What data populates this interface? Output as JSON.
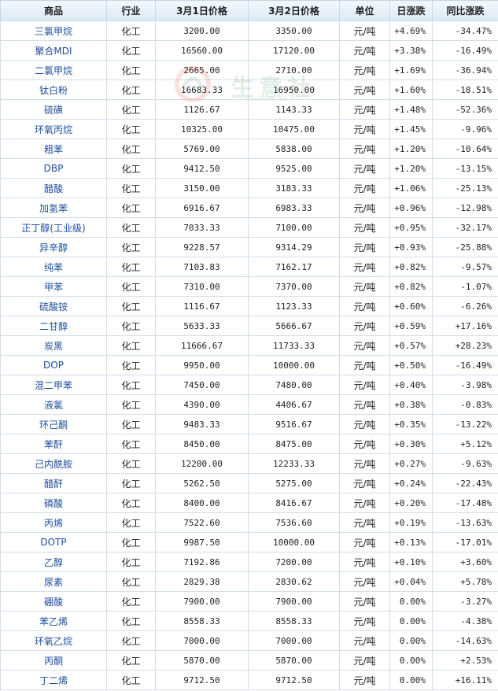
{
  "headers": {
    "product": "商品",
    "industry": "行业",
    "price_d1": "3月1日价格",
    "price_d2": "3月2日价格",
    "unit": "单位",
    "daily": "日涨跌",
    "yoy": "同比涨跌"
  },
  "watermark": {
    "text": "生意社",
    "sub": "100PPI.COM"
  },
  "colors": {
    "up": "#e0201b",
    "down": "#1a8d1a",
    "name": "#1f4e9c"
  },
  "rows": [
    {
      "name": "三氯甲烷",
      "industry": "化工",
      "p1": "3200.00",
      "p2": "3350.00",
      "unit": "元/吨",
      "daily": "+4.69%",
      "yoy": "-34.47%"
    },
    {
      "name": "聚合MDI",
      "industry": "化工",
      "p1": "16560.00",
      "p2": "17120.00",
      "unit": "元/吨",
      "daily": "+3.38%",
      "yoy": "-16.49%"
    },
    {
      "name": "二氯甲烷",
      "industry": "化工",
      "p1": "2665.00",
      "p2": "2710.00",
      "unit": "元/吨",
      "daily": "+1.69%",
      "yoy": "-36.94%"
    },
    {
      "name": "钛白粉",
      "industry": "化工",
      "p1": "16683.33",
      "p2": "16950.00",
      "unit": "元/吨",
      "daily": "+1.60%",
      "yoy": "-18.51%"
    },
    {
      "name": "硫磺",
      "industry": "化工",
      "p1": "1126.67",
      "p2": "1143.33",
      "unit": "元/吨",
      "daily": "+1.48%",
      "yoy": "-52.36%"
    },
    {
      "name": "环氧丙烷",
      "industry": "化工",
      "p1": "10325.00",
      "p2": "10475.00",
      "unit": "元/吨",
      "daily": "+1.45%",
      "yoy": "-9.96%"
    },
    {
      "name": "粗苯",
      "industry": "化工",
      "p1": "5769.00",
      "p2": "5838.00",
      "unit": "元/吨",
      "daily": "+1.20%",
      "yoy": "-10.64%"
    },
    {
      "name": "DBP",
      "industry": "化工",
      "p1": "9412.50",
      "p2": "9525.00",
      "unit": "元/吨",
      "daily": "+1.20%",
      "yoy": "-13.15%"
    },
    {
      "name": "醋酸",
      "industry": "化工",
      "p1": "3150.00",
      "p2": "3183.33",
      "unit": "元/吨",
      "daily": "+1.06%",
      "yoy": "-25.13%"
    },
    {
      "name": "加氢苯",
      "industry": "化工",
      "p1": "6916.67",
      "p2": "6983.33",
      "unit": "元/吨",
      "daily": "+0.96%",
      "yoy": "-12.98%"
    },
    {
      "name": "正丁醇(工业级)",
      "industry": "化工",
      "p1": "7033.33",
      "p2": "7100.00",
      "unit": "元/吨",
      "daily": "+0.95%",
      "yoy": "-32.17%"
    },
    {
      "name": "异辛醇",
      "industry": "化工",
      "p1": "9228.57",
      "p2": "9314.29",
      "unit": "元/吨",
      "daily": "+0.93%",
      "yoy": "-25.88%"
    },
    {
      "name": "纯苯",
      "industry": "化工",
      "p1": "7103.83",
      "p2": "7162.17",
      "unit": "元/吨",
      "daily": "+0.82%",
      "yoy": "-9.57%"
    },
    {
      "name": "甲苯",
      "industry": "化工",
      "p1": "7310.00",
      "p2": "7370.00",
      "unit": "元/吨",
      "daily": "+0.82%",
      "yoy": "-1.07%"
    },
    {
      "name": "硫酸铵",
      "industry": "化工",
      "p1": "1116.67",
      "p2": "1123.33",
      "unit": "元/吨",
      "daily": "+0.60%",
      "yoy": "-6.26%"
    },
    {
      "name": "二甘醇",
      "industry": "化工",
      "p1": "5633.33",
      "p2": "5666.67",
      "unit": "元/吨",
      "daily": "+0.59%",
      "yoy": "+17.16%"
    },
    {
      "name": "炭黑",
      "industry": "化工",
      "p1": "11666.67",
      "p2": "11733.33",
      "unit": "元/吨",
      "daily": "+0.57%",
      "yoy": "+28.23%"
    },
    {
      "name": "DOP",
      "industry": "化工",
      "p1": "9950.00",
      "p2": "10000.00",
      "unit": "元/吨",
      "daily": "+0.50%",
      "yoy": "-16.49%"
    },
    {
      "name": "混二甲苯",
      "industry": "化工",
      "p1": "7450.00",
      "p2": "7480.00",
      "unit": "元/吨",
      "daily": "+0.40%",
      "yoy": "-3.98%"
    },
    {
      "name": "液氯",
      "industry": "化工",
      "p1": "4390.00",
      "p2": "4406.67",
      "unit": "元/吨",
      "daily": "+0.38%",
      "yoy": "-0.83%"
    },
    {
      "name": "环己酮",
      "industry": "化工",
      "p1": "9483.33",
      "p2": "9516.67",
      "unit": "元/吨",
      "daily": "+0.35%",
      "yoy": "-13.22%"
    },
    {
      "name": "苯酐",
      "industry": "化工",
      "p1": "8450.00",
      "p2": "8475.00",
      "unit": "元/吨",
      "daily": "+0.30%",
      "yoy": "+5.12%"
    },
    {
      "name": "己内酰胺",
      "industry": "化工",
      "p1": "12200.00",
      "p2": "12233.33",
      "unit": "元/吨",
      "daily": "+0.27%",
      "yoy": "-9.63%"
    },
    {
      "name": "醋酐",
      "industry": "化工",
      "p1": "5262.50",
      "p2": "5275.00",
      "unit": "元/吨",
      "daily": "+0.24%",
      "yoy": "-22.43%"
    },
    {
      "name": "磷酸",
      "industry": "化工",
      "p1": "8400.00",
      "p2": "8416.67",
      "unit": "元/吨",
      "daily": "+0.20%",
      "yoy": "-17.48%"
    },
    {
      "name": "丙烯",
      "industry": "化工",
      "p1": "7522.60",
      "p2": "7536.60",
      "unit": "元/吨",
      "daily": "+0.19%",
      "yoy": "-13.63%"
    },
    {
      "name": "DOTP",
      "industry": "化工",
      "p1": "9987.50",
      "p2": "10000.00",
      "unit": "元/吨",
      "daily": "+0.13%",
      "yoy": "-17.01%"
    },
    {
      "name": "乙醇",
      "industry": "化工",
      "p1": "7192.86",
      "p2": "7200.00",
      "unit": "元/吨",
      "daily": "+0.10%",
      "yoy": "+3.60%"
    },
    {
      "name": "尿素",
      "industry": "化工",
      "p1": "2829.38",
      "p2": "2830.62",
      "unit": "元/吨",
      "daily": "+0.04%",
      "yoy": "+5.78%"
    },
    {
      "name": "硼酸",
      "industry": "化工",
      "p1": "7900.00",
      "p2": "7900.00",
      "unit": "元/吨",
      "daily": "0.00%",
      "yoy": "-3.27%"
    },
    {
      "name": "苯乙烯",
      "industry": "化工",
      "p1": "8558.33",
      "p2": "8558.33",
      "unit": "元/吨",
      "daily": "0.00%",
      "yoy": "-4.38%"
    },
    {
      "name": "环氧乙烷",
      "industry": "化工",
      "p1": "7000.00",
      "p2": "7000.00",
      "unit": "元/吨",
      "daily": "0.00%",
      "yoy": "-14.63%"
    },
    {
      "name": "丙酮",
      "industry": "化工",
      "p1": "5870.00",
      "p2": "5870.00",
      "unit": "元/吨",
      "daily": "0.00%",
      "yoy": "+2.53%"
    },
    {
      "name": "丁二烯",
      "industry": "化工",
      "p1": "9712.50",
      "p2": "9712.50",
      "unit": "元/吨",
      "daily": "0.00%",
      "yoy": "+16.11%"
    }
  ]
}
